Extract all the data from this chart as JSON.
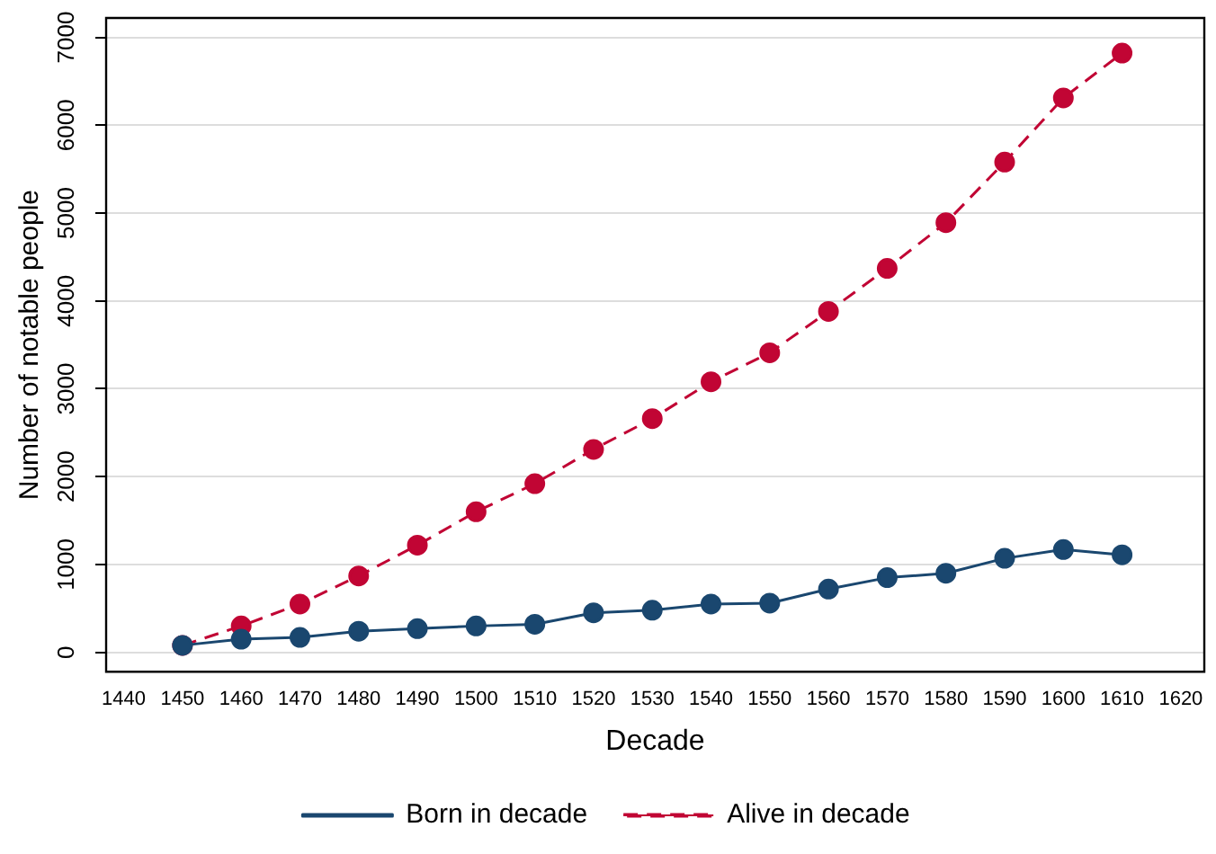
{
  "chart_data": {
    "type": "line",
    "xlabel": "Decade",
    "ylabel": "Number of notable people",
    "x": [
      1450,
      1460,
      1470,
      1480,
      1490,
      1500,
      1510,
      1520,
      1530,
      1540,
      1550,
      1560,
      1570,
      1580,
      1590,
      1600,
      1610
    ],
    "series": [
      {
        "name": "Born in decade",
        "color": "#1a476f",
        "line_style": "solid",
        "values": [
          80,
          150,
          170,
          240,
          270,
          300,
          320,
          450,
          480,
          550,
          560,
          720,
          850,
          900,
          1070,
          1170,
          1110
        ]
      },
      {
        "name": "Alive in decade",
        "color": "#c10534",
        "line_style": "dashed",
        "values": [
          80,
          300,
          550,
          870,
          1220,
          1600,
          1920,
          2310,
          2660,
          3080,
          3410,
          3880,
          4370,
          4890,
          5580,
          6310,
          6820
        ]
      }
    ],
    "xlim": [
      1437,
      1624
    ],
    "xticks": [
      1440,
      1450,
      1460,
      1470,
      1480,
      1490,
      1500,
      1510,
      1520,
      1530,
      1540,
      1550,
      1560,
      1570,
      1580,
      1590,
      1600,
      1610,
      1620
    ],
    "ylim": [
      -220,
      7220
    ],
    "yticks": [
      0,
      1000,
      2000,
      3000,
      4000,
      5000,
      6000,
      7000
    ],
    "grid": "y",
    "legend": "bottom",
    "marker": "circle"
  }
}
